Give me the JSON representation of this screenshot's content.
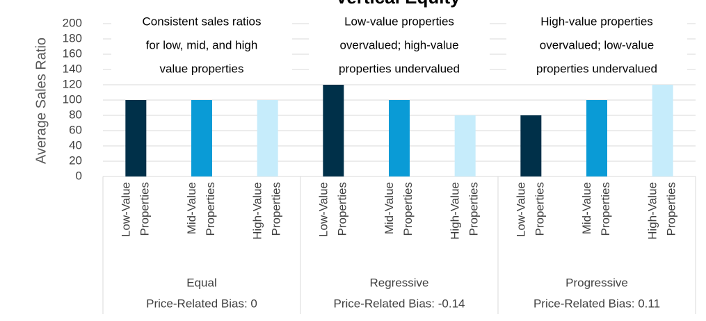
{
  "chart_data": {
    "type": "bar",
    "title": "Vertical Equity",
    "y_label": "Average Sales Ratio",
    "categories": [
      "Low-Value Properties",
      "Mid-Value Properties",
      "High-Value Properties",
      "Low-Value Properties",
      "Mid-Value Properties",
      "High-Value Properties",
      "Low-Value Properties",
      "Mid-Value Properties",
      "High-Value Properties"
    ],
    "values": [
      100,
      100,
      100,
      120,
      100,
      80,
      80,
      100,
      120
    ],
    "colors": [
      "#003049",
      "#0a9bd6",
      "#c6ecfb",
      "#003049",
      "#0a9bd6",
      "#c6ecfb",
      "#003049",
      "#0a9bd6",
      "#c6ecfb"
    ],
    "groups": [
      {
        "name": "Equal",
        "subtitle": "Price-Related Bias: 0"
      },
      {
        "name": "Regressive",
        "subtitle": "Price-Related Bias: -0.14"
      },
      {
        "name": "Progressive",
        "subtitle": "Price-Related Bias: 0.11"
      }
    ],
    "annotations": [
      [
        "Consistent sales ratios",
        "for low, mid, and high",
        "value properties"
      ],
      [
        "Low-value properties",
        "overvalued; high-value",
        "properties undervalued"
      ],
      [
        "High-value properties",
        "overvalued; low-value",
        "properties undervalued"
      ]
    ],
    "ylim": [
      0,
      200
    ],
    "yticks": [
      0,
      20,
      40,
      60,
      80,
      100,
      120,
      140,
      160,
      180,
      200
    ],
    "grid": true
  }
}
